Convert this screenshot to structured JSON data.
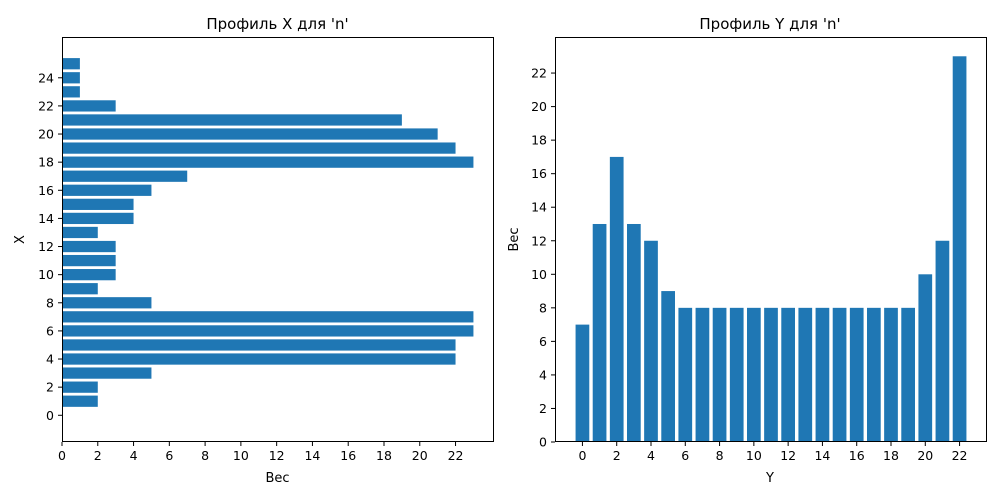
{
  "chart_data": [
    {
      "type": "bar",
      "orientation": "horizontal",
      "title": "Профиль X для 'n'",
      "xlabel": "Вес",
      "ylabel": "X",
      "categories": [
        0,
        1,
        2,
        3,
        4,
        5,
        6,
        7,
        8,
        9,
        10,
        11,
        12,
        13,
        14,
        15,
        16,
        17,
        18,
        19,
        20,
        21,
        22,
        23,
        24,
        25
      ],
      "values": [
        0,
        2,
        2,
        5,
        22,
        22,
        23,
        23,
        5,
        2,
        3,
        3,
        3,
        2,
        4,
        4,
        5,
        7,
        23,
        22,
        21,
        19,
        3,
        1,
        1,
        1
      ],
      "xlim": [
        0,
        24.15
      ],
      "ylim": [
        -1.9,
        26.9
      ],
      "xticks": [
        0,
        2,
        4,
        6,
        8,
        10,
        12,
        14,
        16,
        18,
        20,
        22
      ],
      "yticks": [
        0,
        2,
        4,
        6,
        8,
        10,
        12,
        14,
        16,
        18,
        20,
        22,
        24
      ],
      "grid": false
    },
    {
      "type": "bar",
      "orientation": "vertical",
      "title": "Профиль Y для 'n'",
      "xlabel": "Y",
      "ylabel": "Вес",
      "categories": [
        0,
        1,
        2,
        3,
        4,
        5,
        6,
        7,
        8,
        9,
        10,
        11,
        12,
        13,
        14,
        15,
        16,
        17,
        18,
        19,
        20,
        21,
        22
      ],
      "values": [
        7,
        13,
        17,
        13,
        12,
        9,
        8,
        8,
        8,
        8,
        8,
        8,
        8,
        8,
        8,
        8,
        8,
        8,
        8,
        8,
        10,
        12,
        23
      ],
      "xlim": [
        -1.6,
        23.6
      ],
      "ylim": [
        0,
        24.15
      ],
      "xticks": [
        0,
        2,
        4,
        6,
        8,
        10,
        12,
        14,
        16,
        18,
        20,
        22
      ],
      "yticks": [
        0,
        2,
        4,
        6,
        8,
        10,
        12,
        14,
        16,
        18,
        20,
        22
      ],
      "grid": false
    }
  ]
}
